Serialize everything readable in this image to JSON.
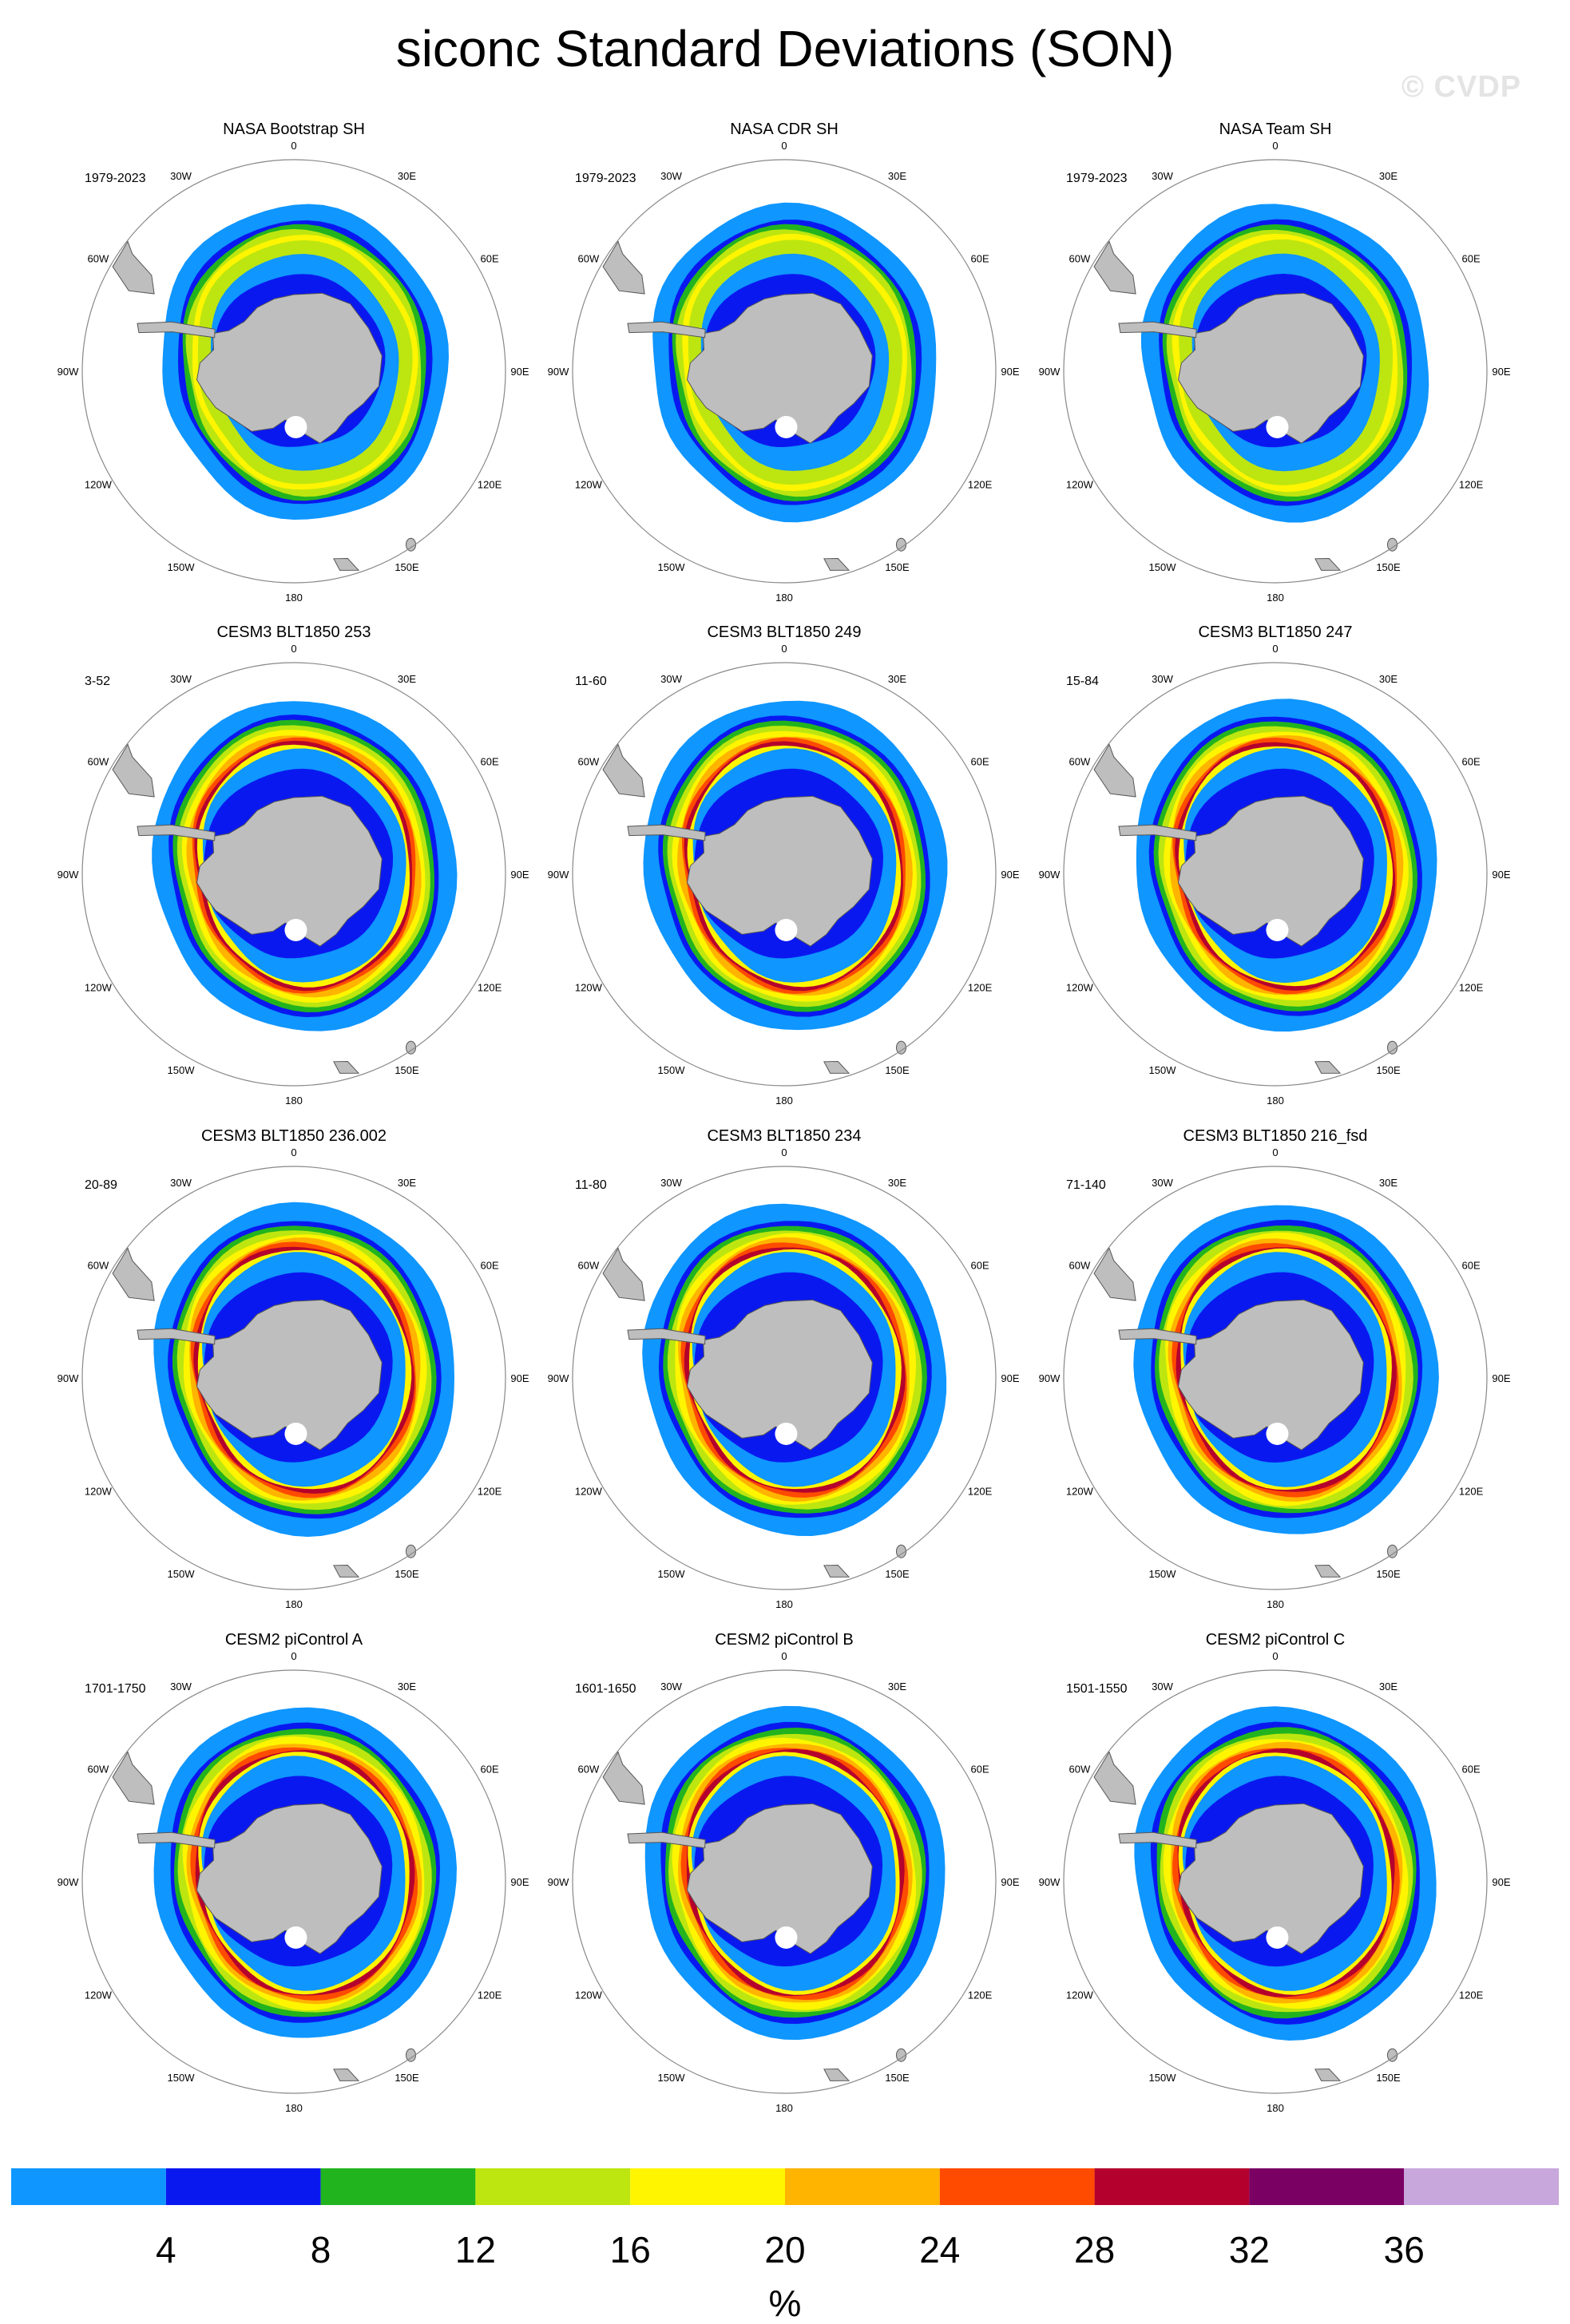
{
  "title": "siconc Standard Deviations (SON)",
  "watermark": "© CVDP",
  "colorbar": {
    "label": "%",
    "ticks": [
      "4",
      "8",
      "12",
      "16",
      "20",
      "24",
      "28",
      "32",
      "36"
    ],
    "colors": [
      "#0f96ff",
      "#0a18f0",
      "#22b41e",
      "#bde610",
      "#fff500",
      "#ffb400",
      "#ff4b00",
      "#b4002d",
      "#7a0064",
      "#c8a8dc"
    ]
  },
  "map_labels": {
    "lat0": "0",
    "lon30e": "30E",
    "lon60e": "60E",
    "lon90e": "90E",
    "lon120e": "120E",
    "lon150e": "150E",
    "lon180": "180",
    "lon150w": "150W",
    "lon120w": "120W",
    "lon90w": "90W",
    "lon60w": "60W",
    "lon30w": "30W"
  },
  "panels": [
    {
      "title": "NASA Bootstrap SH",
      "period": "1979-2023",
      "kind": "obs"
    },
    {
      "title": "NASA CDR SH",
      "period": "1979-2023",
      "kind": "obs"
    },
    {
      "title": "NASA Team SH",
      "period": "1979-2023",
      "kind": "obs"
    },
    {
      "title": "CESM3 BLT1850 253",
      "period": "3-52",
      "kind": "model"
    },
    {
      "title": "CESM3 BLT1850 249",
      "period": "11-60",
      "kind": "model"
    },
    {
      "title": "CESM3 BLT1850 247",
      "period": "15-84",
      "kind": "model"
    },
    {
      "title": "CESM3 BLT1850 236.002",
      "period": "20-89",
      "kind": "model"
    },
    {
      "title": "CESM3 BLT1850 234",
      "period": "11-80",
      "kind": "model"
    },
    {
      "title": "CESM3 BLT1850 216_fsd",
      "period": "71-140",
      "kind": "model"
    },
    {
      "title": "CESM2 piControl A",
      "period": "1701-1750",
      "kind": "model"
    },
    {
      "title": "CESM2 piControl B",
      "period": "1601-1650",
      "kind": "model"
    },
    {
      "title": "CESM2 piControl C",
      "period": "1501-1550",
      "kind": "model"
    }
  ]
}
